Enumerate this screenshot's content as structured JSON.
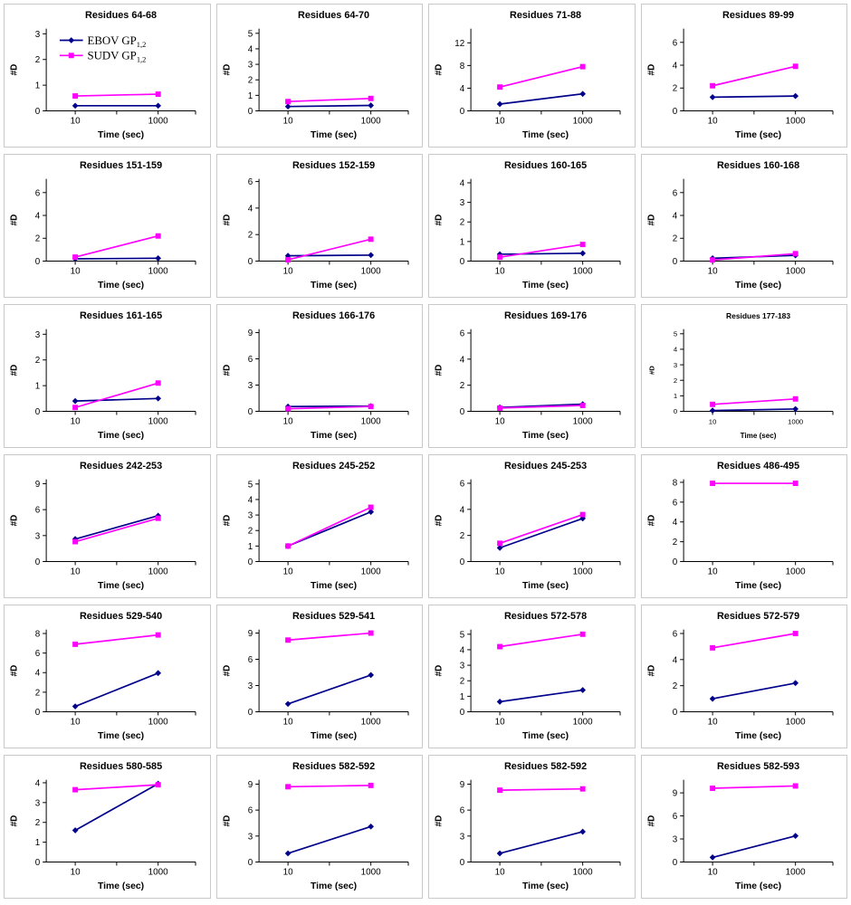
{
  "figure": {
    "description": "Grid of 24 hydrogen-deuterium exchange plots comparing EBOV and SUDV glycoproteins",
    "xlabel": "Time (sec)",
    "ylabel": "#D",
    "x_scale": "log",
    "x": [
      10,
      1000
    ],
    "x_tick_labels": [
      "10",
      "1000"
    ],
    "x_minor_tick": 100,
    "grid_lines": false,
    "series_defs": [
      {
        "key": "EBOV",
        "label": "EBOV GP",
        "subscript": "1,2",
        "color": "#00008B",
        "marker": "diamond"
      },
      {
        "key": "SUDV",
        "label": "SUDV GP",
        "subscript": "1,2",
        "color": "#FF00FF",
        "marker": "square"
      }
    ]
  },
  "chart_data": [
    {
      "type": "line",
      "title": "Residues 64-68",
      "yticks": [
        0,
        1,
        2,
        3
      ],
      "ymax": 3.2,
      "show_legend": true,
      "series": [
        {
          "key": "EBOV",
          "values": [
            0.2,
            0.2
          ]
        },
        {
          "key": "SUDV",
          "values": [
            0.58,
            0.65
          ]
        }
      ]
    },
    {
      "type": "line",
      "title": "Residues 64-70",
      "yticks": [
        0,
        1,
        2,
        3,
        4,
        5
      ],
      "ymax": 5.3,
      "show_legend": false,
      "series": [
        {
          "key": "EBOV",
          "values": [
            0.28,
            0.35
          ]
        },
        {
          "key": "SUDV",
          "values": [
            0.6,
            0.8
          ]
        }
      ]
    },
    {
      "type": "line",
      "title": "Residues 71-88",
      "yticks": [
        0,
        4,
        8,
        12
      ],
      "ymax": 14.5,
      "show_legend": false,
      "series": [
        {
          "key": "EBOV",
          "values": [
            1.2,
            3.0
          ]
        },
        {
          "key": "SUDV",
          "values": [
            4.2,
            7.8
          ]
        }
      ]
    },
    {
      "type": "line",
      "title": "Residues 89-99",
      "yticks": [
        0,
        2,
        4,
        6
      ],
      "ymax": 7.2,
      "show_legend": false,
      "series": [
        {
          "key": "EBOV",
          "values": [
            1.2,
            1.3
          ]
        },
        {
          "key": "SUDV",
          "values": [
            2.2,
            3.9
          ]
        }
      ]
    },
    {
      "type": "line",
      "title": "Residues 151-159",
      "yticks": [
        0,
        2,
        4,
        6
      ],
      "ymax": 7.2,
      "show_legend": false,
      "series": [
        {
          "key": "EBOV",
          "values": [
            0.2,
            0.25
          ]
        },
        {
          "key": "SUDV",
          "values": [
            0.35,
            2.2
          ]
        }
      ]
    },
    {
      "type": "line",
      "title": "Residues 152-159",
      "yticks": [
        0,
        2,
        4,
        6
      ],
      "ymax": 6.2,
      "show_legend": false,
      "series": [
        {
          "key": "EBOV",
          "values": [
            0.4,
            0.45
          ]
        },
        {
          "key": "SUDV",
          "values": [
            0.1,
            1.65
          ]
        }
      ]
    },
    {
      "type": "line",
      "title": "Residues 160-165",
      "yticks": [
        0,
        1,
        2,
        3,
        4
      ],
      "ymax": 4.2,
      "show_legend": false,
      "series": [
        {
          "key": "EBOV",
          "values": [
            0.35,
            0.4
          ]
        },
        {
          "key": "SUDV",
          "values": [
            0.2,
            0.85
          ]
        }
      ]
    },
    {
      "type": "line",
      "title": "Residues 160-168",
      "yticks": [
        0,
        2,
        4,
        6
      ],
      "ymax": 7.2,
      "show_legend": false,
      "series": [
        {
          "key": "EBOV",
          "values": [
            0.25,
            0.5
          ]
        },
        {
          "key": "SUDV",
          "values": [
            0.1,
            0.65
          ]
        }
      ]
    },
    {
      "type": "line",
      "title": "Residues 161-165",
      "yticks": [
        0,
        1,
        2,
        3
      ],
      "ymax": 3.2,
      "show_legend": false,
      "series": [
        {
          "key": "EBOV",
          "values": [
            0.4,
            0.5
          ]
        },
        {
          "key": "SUDV",
          "values": [
            0.15,
            1.1
          ]
        }
      ]
    },
    {
      "type": "line",
      "title": "Residues 166-176",
      "yticks": [
        0,
        3,
        6,
        9
      ],
      "ymax": 9.4,
      "show_legend": false,
      "series": [
        {
          "key": "EBOV",
          "values": [
            0.55,
            0.6
          ]
        },
        {
          "key": "SUDV",
          "values": [
            0.3,
            0.55
          ]
        }
      ]
    },
    {
      "type": "line",
      "title": "Residues 169-176",
      "yticks": [
        0,
        2,
        4,
        6
      ],
      "ymax": 6.3,
      "show_legend": false,
      "series": [
        {
          "key": "EBOV",
          "values": [
            0.3,
            0.55
          ]
        },
        {
          "key": "SUDV",
          "values": [
            0.25,
            0.45
          ]
        }
      ]
    },
    {
      "type": "line",
      "title": "Residues 177-183",
      "yticks": [
        0,
        1,
        2,
        3,
        4,
        5
      ],
      "ymax": 5.3,
      "show_legend": false,
      "small_labels": true,
      "series": [
        {
          "key": "EBOV",
          "values": [
            0.05,
            0.15
          ]
        },
        {
          "key": "SUDV",
          "values": [
            0.45,
            0.8
          ]
        }
      ]
    },
    {
      "type": "line",
      "title": "Residues 242-253",
      "yticks": [
        0,
        3,
        6,
        9
      ],
      "ymax": 9.5,
      "show_legend": false,
      "series": [
        {
          "key": "EBOV",
          "values": [
            2.6,
            5.3
          ]
        },
        {
          "key": "SUDV",
          "values": [
            2.3,
            5.0
          ]
        }
      ]
    },
    {
      "type": "line",
      "title": "Residues 245-252",
      "yticks": [
        0,
        1,
        2,
        3,
        4,
        5
      ],
      "ymax": 5.3,
      "show_legend": false,
      "series": [
        {
          "key": "EBOV",
          "values": [
            1.0,
            3.2
          ]
        },
        {
          "key": "SUDV",
          "values": [
            1.0,
            3.5
          ]
        }
      ]
    },
    {
      "type": "line",
      "title": "Residues 245-253",
      "yticks": [
        0,
        2,
        4,
        6
      ],
      "ymax": 6.3,
      "show_legend": false,
      "series": [
        {
          "key": "EBOV",
          "values": [
            1.05,
            3.3
          ]
        },
        {
          "key": "SUDV",
          "values": [
            1.4,
            3.6
          ]
        }
      ]
    },
    {
      "type": "line",
      "title": "Residues 486-495",
      "yticks": [
        0,
        2,
        4,
        6,
        8
      ],
      "ymax": 8.3,
      "show_legend": false,
      "series": [
        {
          "key": "SUDV",
          "values": [
            7.9,
            7.9
          ]
        }
      ]
    },
    {
      "type": "line",
      "title": "Residues 529-540",
      "yticks": [
        0,
        2,
        4,
        6,
        8
      ],
      "ymax": 8.4,
      "show_legend": false,
      "series": [
        {
          "key": "EBOV",
          "values": [
            0.55,
            3.95
          ]
        },
        {
          "key": "SUDV",
          "values": [
            6.9,
            7.85
          ]
        }
      ]
    },
    {
      "type": "line",
      "title": "Residues 529-541",
      "yticks": [
        0,
        3,
        6,
        9
      ],
      "ymax": 9.4,
      "show_legend": false,
      "series": [
        {
          "key": "EBOV",
          "values": [
            0.9,
            4.2
          ]
        },
        {
          "key": "SUDV",
          "values": [
            8.2,
            9.0
          ]
        }
      ]
    },
    {
      "type": "line",
      "title": "Residues 572-578",
      "yticks": [
        0,
        1,
        2,
        3,
        4,
        5
      ],
      "ymax": 5.3,
      "show_legend": false,
      "series": [
        {
          "key": "EBOV",
          "values": [
            0.65,
            1.4
          ]
        },
        {
          "key": "SUDV",
          "values": [
            4.2,
            5.0
          ]
        }
      ]
    },
    {
      "type": "line",
      "title": "Residues 572-579",
      "yticks": [
        0,
        2,
        4,
        6
      ],
      "ymax": 6.3,
      "show_legend": false,
      "series": [
        {
          "key": "EBOV",
          "values": [
            1.0,
            2.2
          ]
        },
        {
          "key": "SUDV",
          "values": [
            4.9,
            6.0
          ]
        }
      ]
    },
    {
      "type": "line",
      "title": "Residues 580-585",
      "yticks": [
        0,
        1,
        2,
        3,
        4
      ],
      "ymax": 4.15,
      "show_legend": false,
      "series": [
        {
          "key": "EBOV",
          "values": [
            1.6,
            3.95
          ]
        },
        {
          "key": "SUDV",
          "values": [
            3.65,
            3.9
          ]
        }
      ]
    },
    {
      "type": "line",
      "title": "Residues 582-592",
      "yticks": [
        0,
        3,
        6,
        9
      ],
      "ymax": 9.5,
      "show_legend": false,
      "series": [
        {
          "key": "EBOV",
          "values": [
            1.0,
            4.1
          ]
        },
        {
          "key": "SUDV",
          "values": [
            8.7,
            8.85
          ]
        }
      ]
    },
    {
      "type": "line",
      "title": "Residues 582-592",
      "yticks": [
        0,
        3,
        6,
        9
      ],
      "ymax": 9.5,
      "show_legend": false,
      "series": [
        {
          "key": "EBOV",
          "values": [
            1.0,
            3.5
          ]
        },
        {
          "key": "SUDV",
          "values": [
            8.3,
            8.45
          ]
        }
      ]
    },
    {
      "type": "line",
      "title": "Residues 582-593",
      "yticks": [
        0,
        3,
        6,
        9
      ],
      "ymax": 10.7,
      "show_legend": false,
      "series": [
        {
          "key": "EBOV",
          "values": [
            0.6,
            3.4
          ]
        },
        {
          "key": "SUDV",
          "values": [
            9.6,
            9.9
          ]
        }
      ]
    }
  ]
}
